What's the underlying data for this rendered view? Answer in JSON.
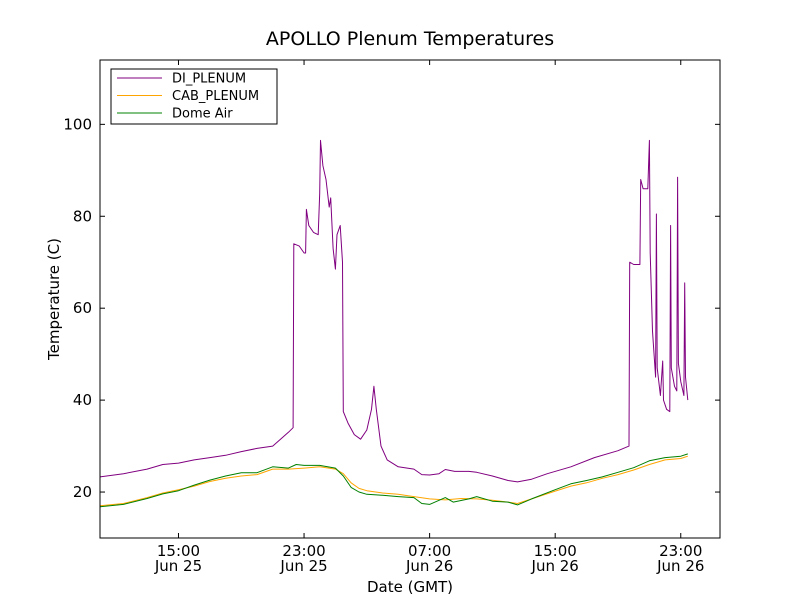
{
  "chart_data": {
    "type": "line",
    "title": "APOLLO Plenum Temperatures",
    "xlabel": "Date (GMT)",
    "ylabel": "Temperature (C)",
    "x_unit": "hours",
    "xlim": [
      10.0,
      49.5
    ],
    "ylim": [
      10,
      114
    ],
    "y_ticks": [
      20,
      40,
      60,
      80,
      100
    ],
    "x_ticks": [
      {
        "x": 15,
        "line1": "15:00",
        "line2": "Jun 25"
      },
      {
        "x": 23,
        "line1": "23:00",
        "line2": "Jun 25"
      },
      {
        "x": 31,
        "line1": "07:00",
        "line2": "Jun 26"
      },
      {
        "x": 39,
        "line1": "15:00",
        "line2": "Jun 26"
      },
      {
        "x": 47,
        "line1": "23:00",
        "line2": "Jun 26"
      }
    ],
    "legend_position": "top-left",
    "grid": false,
    "series": [
      {
        "name": "DI_PLENUM",
        "color": "#800080",
        "points": [
          [
            10.0,
            23.3
          ],
          [
            11.5,
            24.0
          ],
          [
            13.0,
            25.0
          ],
          [
            14.0,
            26.0
          ],
          [
            15.0,
            26.3
          ],
          [
            16.0,
            27.0
          ],
          [
            17.0,
            27.5
          ],
          [
            18.0,
            28.0
          ],
          [
            19.0,
            28.8
          ],
          [
            20.0,
            29.5
          ],
          [
            21.0,
            30.0
          ],
          [
            21.5,
            31.5
          ],
          [
            22.0,
            33.0
          ],
          [
            22.3,
            34.0
          ],
          [
            22.35,
            74.0
          ],
          [
            22.7,
            73.5
          ],
          [
            23.0,
            72.0
          ],
          [
            23.1,
            72.0
          ],
          [
            23.15,
            81.5
          ],
          [
            23.3,
            78.0
          ],
          [
            23.6,
            76.5
          ],
          [
            23.9,
            76.0
          ],
          [
            24.0,
            85.0
          ],
          [
            24.05,
            96.5
          ],
          [
            24.2,
            91.0
          ],
          [
            24.4,
            88.0
          ],
          [
            24.6,
            82.0
          ],
          [
            24.7,
            84.0
          ],
          [
            24.85,
            73.0
          ],
          [
            25.0,
            68.5
          ],
          [
            25.1,
            76.0
          ],
          [
            25.3,
            78.0
          ],
          [
            25.45,
            70.0
          ],
          [
            25.5,
            37.5
          ],
          [
            25.8,
            35.0
          ],
          [
            26.2,
            32.5
          ],
          [
            26.6,
            31.5
          ],
          [
            27.0,
            33.5
          ],
          [
            27.3,
            38.0
          ],
          [
            27.45,
            43.0
          ],
          [
            27.6,
            38.0
          ],
          [
            27.9,
            30.0
          ],
          [
            28.3,
            27.0
          ],
          [
            29.0,
            25.5
          ],
          [
            30.0,
            25.0
          ],
          [
            30.5,
            23.8
          ],
          [
            31.0,
            23.7
          ],
          [
            31.6,
            24.0
          ],
          [
            32.0,
            24.9
          ],
          [
            32.6,
            24.5
          ],
          [
            33.5,
            24.5
          ],
          [
            34.0,
            24.3
          ],
          [
            35.0,
            23.5
          ],
          [
            36.0,
            22.5
          ],
          [
            36.6,
            22.2
          ],
          [
            37.5,
            22.8
          ],
          [
            38.5,
            24.0
          ],
          [
            40.0,
            25.5
          ],
          [
            41.5,
            27.5
          ],
          [
            43.0,
            29.0
          ],
          [
            43.7,
            30.0
          ],
          [
            43.75,
            70.0
          ],
          [
            44.0,
            69.5
          ],
          [
            44.4,
            69.5
          ],
          [
            44.45,
            88.0
          ],
          [
            44.6,
            86.0
          ],
          [
            44.9,
            86.0
          ],
          [
            45.0,
            96.5
          ],
          [
            45.05,
            72.0
          ],
          [
            45.2,
            55.0
          ],
          [
            45.4,
            45.0
          ],
          [
            45.45,
            80.5
          ],
          [
            45.5,
            47.0
          ],
          [
            45.7,
            41.0
          ],
          [
            45.85,
            48.5
          ],
          [
            45.9,
            40.0
          ],
          [
            46.1,
            38.0
          ],
          [
            46.3,
            37.5
          ],
          [
            46.35,
            78.0
          ],
          [
            46.4,
            47.0
          ],
          [
            46.6,
            43.0
          ],
          [
            46.75,
            42.0
          ],
          [
            46.8,
            88.5
          ],
          [
            46.85,
            48.0
          ],
          [
            47.0,
            44.0
          ],
          [
            47.2,
            41.0
          ],
          [
            47.25,
            65.5
          ],
          [
            47.3,
            45.0
          ],
          [
            47.45,
            40.0
          ]
        ]
      },
      {
        "name": "CAB_PLENUM",
        "color": "#ffa500",
        "points": [
          [
            10.0,
            17.0
          ],
          [
            11.5,
            17.5
          ],
          [
            13.0,
            18.8
          ],
          [
            14.0,
            19.8
          ],
          [
            15.0,
            20.5
          ],
          [
            16.0,
            21.3
          ],
          [
            17.0,
            22.3
          ],
          [
            18.0,
            23.0
          ],
          [
            19.0,
            23.5
          ],
          [
            20.0,
            23.8
          ],
          [
            21.0,
            25.0
          ],
          [
            22.0,
            25.0
          ],
          [
            23.0,
            25.2
          ],
          [
            24.0,
            25.5
          ],
          [
            25.0,
            25.0
          ],
          [
            25.5,
            24.0
          ],
          [
            26.0,
            22.0
          ],
          [
            26.5,
            20.8
          ],
          [
            27.0,
            20.3
          ],
          [
            28.0,
            19.8
          ],
          [
            29.0,
            19.5
          ],
          [
            30.0,
            19.0
          ],
          [
            31.0,
            18.5
          ],
          [
            32.0,
            18.3
          ],
          [
            33.0,
            18.6
          ],
          [
            34.0,
            18.5
          ],
          [
            35.0,
            18.2
          ],
          [
            36.0,
            17.8
          ],
          [
            36.6,
            17.5
          ],
          [
            37.5,
            18.5
          ],
          [
            39.0,
            20.2
          ],
          [
            40.0,
            21.3
          ],
          [
            41.0,
            22.0
          ],
          [
            42.0,
            23.0
          ],
          [
            43.0,
            23.8
          ],
          [
            44.0,
            24.8
          ],
          [
            45.0,
            26.0
          ],
          [
            46.0,
            27.0
          ],
          [
            47.0,
            27.3
          ],
          [
            47.45,
            27.8
          ]
        ]
      },
      {
        "name": "Dome Air",
        "color": "#008000",
        "points": [
          [
            10.0,
            16.8
          ],
          [
            11.5,
            17.3
          ],
          [
            13.0,
            18.6
          ],
          [
            14.0,
            19.6
          ],
          [
            15.0,
            20.3
          ],
          [
            16.0,
            21.5
          ],
          [
            17.0,
            22.6
          ],
          [
            18.0,
            23.5
          ],
          [
            19.0,
            24.2
          ],
          [
            20.0,
            24.2
          ],
          [
            21.0,
            25.5
          ],
          [
            22.0,
            25.2
          ],
          [
            22.5,
            26.0
          ],
          [
            23.0,
            25.8
          ],
          [
            24.0,
            25.8
          ],
          [
            25.0,
            25.2
          ],
          [
            25.5,
            23.5
          ],
          [
            26.0,
            21.0
          ],
          [
            26.5,
            20.0
          ],
          [
            27.0,
            19.5
          ],
          [
            28.0,
            19.3
          ],
          [
            29.0,
            19.0
          ],
          [
            30.0,
            18.8
          ],
          [
            30.5,
            17.5
          ],
          [
            31.0,
            17.3
          ],
          [
            32.0,
            18.8
          ],
          [
            32.5,
            17.8
          ],
          [
            33.5,
            18.5
          ],
          [
            34.0,
            19.0
          ],
          [
            35.0,
            18.0
          ],
          [
            36.0,
            17.8
          ],
          [
            36.6,
            17.2
          ],
          [
            37.5,
            18.5
          ],
          [
            39.0,
            20.5
          ],
          [
            40.0,
            21.8
          ],
          [
            41.0,
            22.5
          ],
          [
            42.0,
            23.3
          ],
          [
            43.0,
            24.3
          ],
          [
            44.0,
            25.3
          ],
          [
            45.0,
            26.8
          ],
          [
            46.0,
            27.5
          ],
          [
            47.0,
            27.8
          ],
          [
            47.45,
            28.3
          ]
        ]
      }
    ]
  }
}
